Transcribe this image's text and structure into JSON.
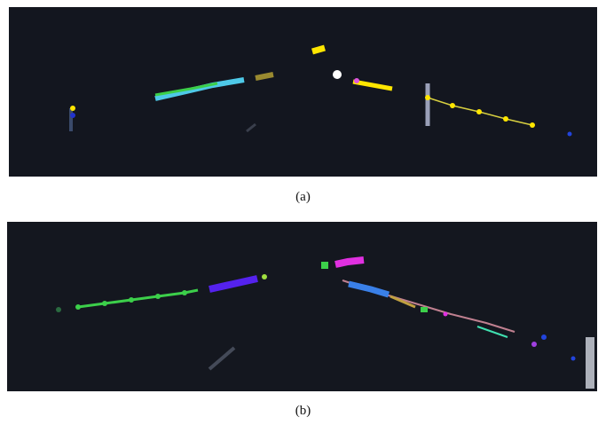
{
  "figures": [
    {
      "caption": "(a)"
    },
    {
      "caption": "(b)"
    }
  ]
}
